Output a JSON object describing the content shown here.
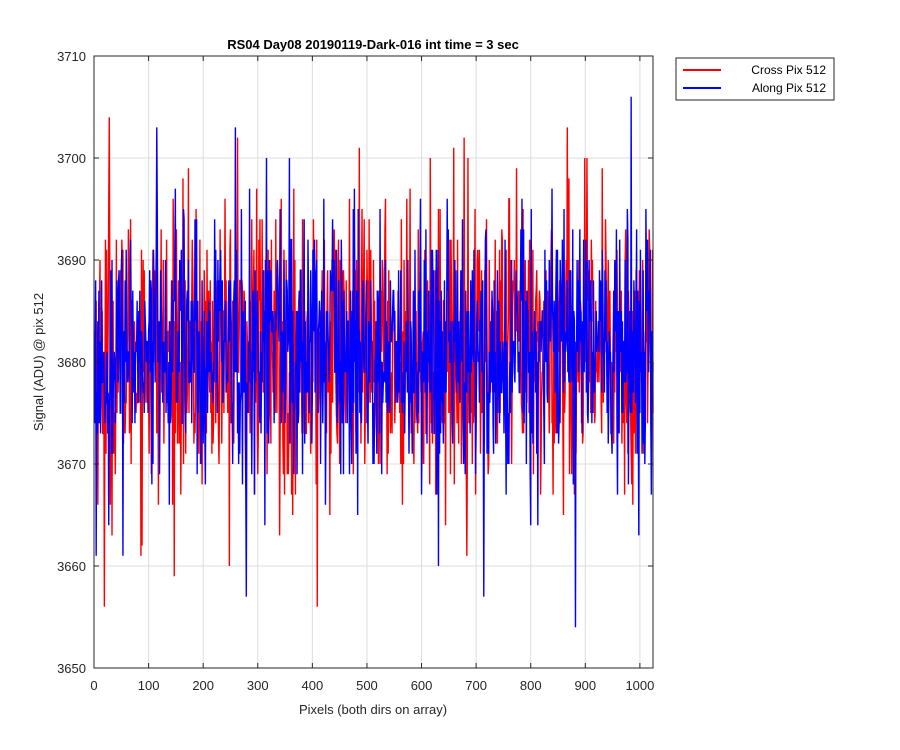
{
  "chart_data": {
    "type": "line",
    "title": "RS04 Day08 20190119-Dark-016 int time = 3 sec",
    "xlabel": "Pixels (both dirs on array)",
    "ylabel": "Signal (ADU) @ pix 512",
    "xlim": [
      0,
      1024
    ],
    "ylim": [
      3650,
      3710
    ],
    "xticks": [
      0,
      100,
      200,
      300,
      400,
      500,
      600,
      700,
      800,
      900,
      1000
    ],
    "yticks": [
      3650,
      3660,
      3670,
      3680,
      3690,
      3700,
      3710
    ],
    "grid": true,
    "legend_position": "outside top-right",
    "series": [
      {
        "name": "Cross Pix 512",
        "color": "#ff0000",
        "mean": 3681,
        "stddev": 7,
        "num_points": 1024,
        "notable_points": [
          {
            "x": 18,
            "y": 3656
          },
          {
            "x": 27,
            "y": 3704
          },
          {
            "x": 262,
            "y": 3702
          },
          {
            "x": 408,
            "y": 3656
          },
          {
            "x": 677,
            "y": 3702
          },
          {
            "x": 866,
            "y": 3703
          }
        ]
      },
      {
        "name": "Along Pix 512",
        "color": "#0000ff",
        "mean": 3681,
        "stddev": 6.5,
        "num_points": 1024,
        "notable_points": [
          {
            "x": 114,
            "y": 3703
          },
          {
            "x": 258,
            "y": 3703
          },
          {
            "x": 278,
            "y": 3657
          },
          {
            "x": 713,
            "y": 3657
          },
          {
            "x": 881,
            "y": 3654
          },
          {
            "x": 983,
            "y": 3706
          }
        ]
      }
    ]
  }
}
